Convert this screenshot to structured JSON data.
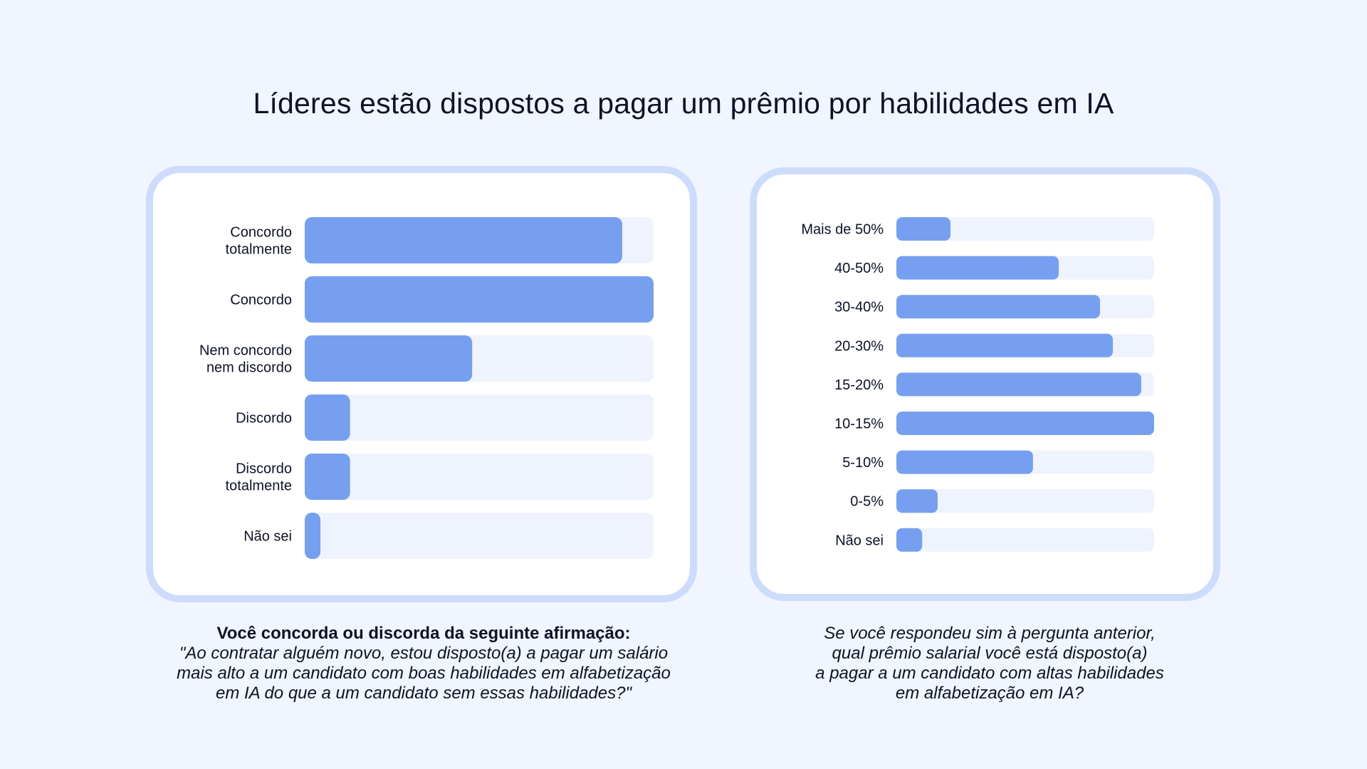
{
  "title": "Líderes estão dispostos a pagar um prêmio por habilidades em IA",
  "colors": {
    "bar": "#779ff0",
    "track": "#eef3fd",
    "card_border": "#cddcfa",
    "background": "#f0f5ff"
  },
  "chart_data": [
    {
      "type": "bar",
      "orientation": "horizontal",
      "categories": [
        "Concordo totalmente",
        "Concordo",
        "Nem concordo nem discordo",
        "Discordo",
        "Discordo totalmente",
        "Não sei"
      ],
      "category_lines": [
        [
          "Concordo",
          "totalmente"
        ],
        [
          "Concordo"
        ],
        [
          "Nem concordo",
          "nem discordo"
        ],
        [
          "Discordo"
        ],
        [
          "Discordo",
          "totalmente"
        ],
        [
          "Não sei"
        ]
      ],
      "values": [
        0.91,
        1.0,
        0.48,
        0.13,
        0.13,
        0.045
      ],
      "value_scale": "relative to largest bar",
      "grid": false,
      "legend": false
    },
    {
      "type": "bar",
      "orientation": "horizontal",
      "categories": [
        "Mais de 50%",
        "40-50%",
        "30-40%",
        "20-30%",
        "15-20%",
        "10-15%",
        "5-10%",
        "0-5%",
        "Não sei"
      ],
      "category_lines": [
        [
          "Mais de 50%"
        ],
        [
          "40-50%"
        ],
        [
          "30-40%"
        ],
        [
          "20-30%"
        ],
        [
          "15-20%"
        ],
        [
          "10-15%"
        ],
        [
          "5-10%"
        ],
        [
          "0-5%"
        ],
        [
          "Não sei"
        ]
      ],
      "values": [
        0.21,
        0.63,
        0.79,
        0.84,
        0.95,
        1.0,
        0.53,
        0.16,
        0.1
      ],
      "value_scale": "relative to largest bar",
      "grid": false,
      "legend": false
    }
  ],
  "captions": {
    "left_bold": "Você concorda ou discorda da seguinte afirmação:",
    "left_italic": "\"Ao contratar alguém novo, estou disposto(a) a pagar um salário\nmais alto a um candidato com boas habilidades em alfabetização\nem IA do que a um candidato sem essas habilidades?\"",
    "right_italic": "Se você respondeu sim à pergunta anterior,\nqual prêmio salarial você está disposto(a)\na pagar a um candidato com altas habilidades\nem alfabetização em IA?"
  }
}
